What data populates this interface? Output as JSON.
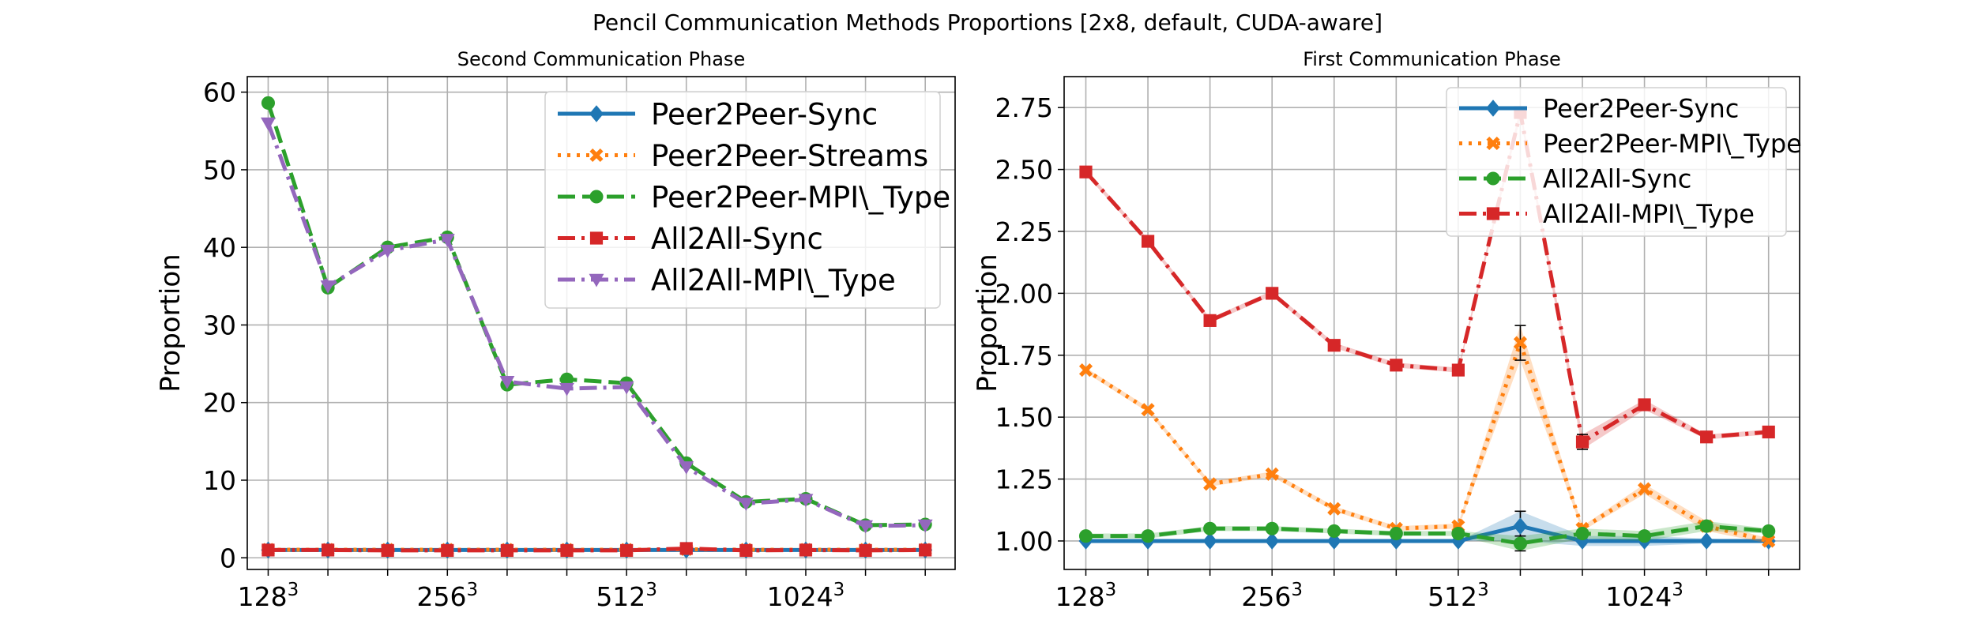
{
  "suptitle": "Pencil Communication Methods Proportions [2x8, default, CUDA-aware]",
  "chart_data": [
    {
      "type": "line",
      "title": "Second Communication Phase",
      "xlabel": "",
      "ylabel": "Proportion",
      "x": [
        1,
        2,
        3,
        4,
        5,
        6,
        7,
        8,
        9,
        10,
        11,
        12
      ],
      "xtick_positions": [
        1,
        4,
        7,
        10
      ],
      "xtick_base": [
        "128",
        "256",
        "512",
        "1024"
      ],
      "xtick_exp": "3",
      "xlim": [
        0.65,
        12.5
      ],
      "ylim": [
        -1.5,
        62
      ],
      "yticks": [
        0,
        10,
        20,
        30,
        40,
        50,
        60
      ],
      "ytick_labels": [
        "0",
        "10",
        "20",
        "30",
        "40",
        "50",
        "60"
      ],
      "grid": true,
      "legend": "top-right",
      "series": [
        {
          "name": "Peer2Peer-Sync",
          "color": "#1f77b4",
          "marker": "diamond",
          "dash": "solid",
          "values": [
            1,
            1,
            1,
            1,
            1,
            1,
            1,
            1,
            1,
            1,
            1,
            1
          ]
        },
        {
          "name": "Peer2Peer-Streams",
          "color": "#ff7f0e",
          "marker": "x",
          "dash": "dotted",
          "values": [
            1.05,
            1.05,
            1.05,
            1.05,
            1.05,
            1.05,
            1.05,
            1.1,
            1.05,
            1.05,
            1.05,
            1.05
          ]
        },
        {
          "name": "Peer2Peer-MPI\\_Type",
          "color": "#2ca02c",
          "marker": "circle",
          "dash": "dashed",
          "values": [
            58.6,
            34.8,
            40.0,
            41.3,
            22.3,
            23.0,
            22.5,
            12.2,
            7.2,
            7.6,
            4.2,
            4.3
          ]
        },
        {
          "name": "All2All-Sync",
          "color": "#d62728",
          "marker": "square",
          "dash": "dashdot",
          "values": [
            1.0,
            1.0,
            0.95,
            0.95,
            0.95,
            0.95,
            0.95,
            1.2,
            0.95,
            1.0,
            0.95,
            1.0
          ]
        },
        {
          "name": "All2All-MPI\\_Type",
          "color": "#9467bd",
          "marker": "triangle-down",
          "dash": "dashdot",
          "values": [
            56.0,
            35.0,
            39.6,
            41.0,
            22.7,
            21.8,
            22.0,
            11.7,
            7.0,
            7.5,
            4.1,
            4.2
          ]
        }
      ]
    },
    {
      "type": "line",
      "title": "First Communication Phase",
      "xlabel": "",
      "ylabel": "Proportion",
      "x": [
        1,
        2,
        3,
        4,
        5,
        6,
        7,
        8,
        9,
        10,
        11,
        12
      ],
      "xtick_positions": [
        1,
        4,
        7,
        10
      ],
      "xtick_base": [
        "128",
        "256",
        "512",
        "1024"
      ],
      "xtick_exp": "3",
      "xlim": [
        0.65,
        12.5
      ],
      "ylim": [
        0.885,
        2.875
      ],
      "yticks": [
        1.0,
        1.25,
        1.5,
        1.75,
        2.0,
        2.25,
        2.5,
        2.75
      ],
      "ytick_labels": [
        "1.00",
        "1.25",
        "1.50",
        "1.75",
        "2.00",
        "2.25",
        "2.50",
        "2.75"
      ],
      "grid": true,
      "legend": "top-right",
      "series": [
        {
          "name": "Peer2Peer-Sync",
          "color": "#1f77b4",
          "marker": "diamond",
          "dash": "solid",
          "values": [
            1,
            1,
            1,
            1,
            1,
            1,
            1,
            1.06,
            1,
            1,
            1,
            1
          ],
          "err": [
            0,
            0,
            0,
            0,
            0,
            0,
            0,
            0.06,
            0.02,
            0.02,
            0.01,
            0
          ]
        },
        {
          "name": "Peer2Peer-MPI\\_Type",
          "color": "#ff7f0e",
          "marker": "x",
          "dash": "dotted",
          "values": [
            1.69,
            1.53,
            1.23,
            1.27,
            1.13,
            1.05,
            1.06,
            1.8,
            1.05,
            1.21,
            1.06,
            1.0
          ],
          "err": [
            0.01,
            0.01,
            0.01,
            0.01,
            0.01,
            0.01,
            0.01,
            0.07,
            0.01,
            0.02,
            0.02,
            0.01
          ]
        },
        {
          "name": "All2All-Sync",
          "color": "#2ca02c",
          "marker": "circle",
          "dash": "dashed",
          "values": [
            1.02,
            1.02,
            1.05,
            1.05,
            1.04,
            1.03,
            1.03,
            0.99,
            1.03,
            1.02,
            1.06,
            1.04
          ],
          "err": [
            0.01,
            0.01,
            0.01,
            0.01,
            0.01,
            0.01,
            0.01,
            0.03,
            0.02,
            0.02,
            0.02,
            0.01
          ]
        },
        {
          "name": "All2All-MPI\\_Type",
          "color": "#d62728",
          "marker": "square",
          "dash": "dashdot",
          "values": [
            2.49,
            2.21,
            1.89,
            2.0,
            1.79,
            1.71,
            1.69,
            2.73,
            1.4,
            1.55,
            1.42,
            1.44
          ],
          "err": [
            0.01,
            0.01,
            0.01,
            0.01,
            0.01,
            0.01,
            0.01,
            0.02,
            0.03,
            0.02,
            0.01,
            0.01
          ]
        }
      ]
    }
  ]
}
